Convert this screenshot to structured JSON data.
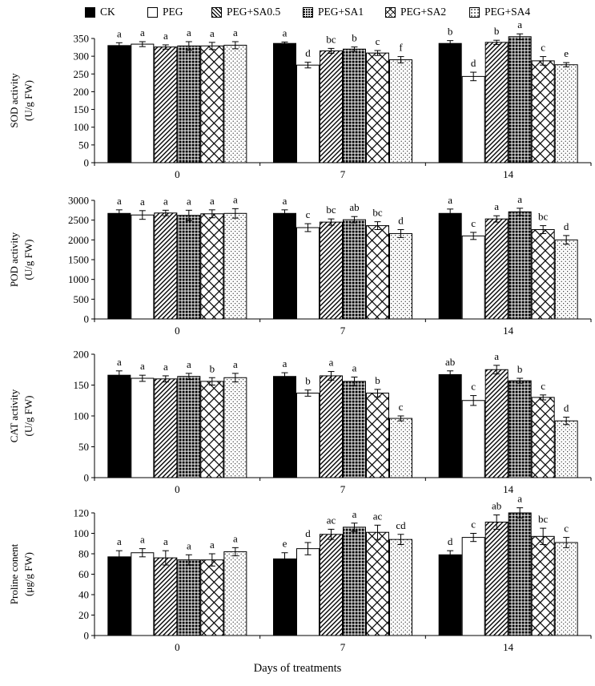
{
  "legend": [
    "CK",
    "PEG",
    "PEG+SA0.5",
    "PEG+SA1",
    "PEG+SA2",
    "PEG+SA4"
  ],
  "x_axis_title": "Days of treatments",
  "chart_data": [
    {
      "type": "bar",
      "ylabel": "SOD activity (U/g FW)",
      "ylim": [
        0,
        350
      ],
      "yticks": [
        0,
        50,
        100,
        150,
        200,
        250,
        300,
        350
      ],
      "categories": [
        "0",
        "7",
        "14"
      ],
      "series": [
        {
          "name": "CK",
          "values": [
            330,
            336,
            336
          ],
          "errors": [
            8,
            4,
            8
          ],
          "letters": [
            "a",
            "a",
            "b"
          ]
        },
        {
          "name": "PEG",
          "values": [
            334,
            275,
            243
          ],
          "errors": [
            7,
            8,
            12
          ],
          "letters": [
            "a",
            "d",
            "d"
          ]
        },
        {
          "name": "PEG+SA0.5",
          "values": [
            326,
            315,
            339
          ],
          "errors": [
            6,
            7,
            6
          ],
          "letters": [
            "a",
            "bc",
            "b"
          ]
        },
        {
          "name": "PEG+SA1",
          "values": [
            329,
            320,
            355
          ],
          "errors": [
            12,
            6,
            8
          ],
          "letters": [
            "a",
            "b",
            "a"
          ]
        },
        {
          "name": "PEG+SA2",
          "values": [
            329,
            309,
            287
          ],
          "errors": [
            10,
            7,
            12
          ],
          "letters": [
            "a",
            "c",
            "c"
          ]
        },
        {
          "name": "PEG+SA4",
          "values": [
            331,
            290,
            276
          ],
          "errors": [
            10,
            9,
            6
          ],
          "letters": [
            "a",
            "f",
            "e"
          ]
        }
      ]
    },
    {
      "type": "bar",
      "ylabel": "POD activity (U/g FW)",
      "ylim": [
        0,
        3000
      ],
      "yticks": [
        0,
        500,
        1000,
        1500,
        2000,
        2500,
        3000
      ],
      "categories": [
        "0",
        "7",
        "14"
      ],
      "series": [
        {
          "name": "CK",
          "values": [
            2670,
            2670,
            2670
          ],
          "errors": [
            90,
            90,
            110
          ],
          "letters": [
            "a",
            "a",
            "a"
          ]
        },
        {
          "name": "PEG",
          "values": [
            2630,
            2310,
            2100
          ],
          "errors": [
            110,
            100,
            90
          ],
          "letters": [
            "a",
            "c",
            "c"
          ]
        },
        {
          "name": "PEG+SA0.5",
          "values": [
            2680,
            2450,
            2530
          ],
          "errors": [
            70,
            80,
            80
          ],
          "letters": [
            "a",
            "bc",
            "a"
          ]
        },
        {
          "name": "PEG+SA1",
          "values": [
            2620,
            2510,
            2710
          ],
          "errors": [
            130,
            80,
            90
          ],
          "letters": [
            "a",
            "ab",
            "a"
          ]
        },
        {
          "name": "PEG+SA2",
          "values": [
            2660,
            2360,
            2260
          ],
          "errors": [
            100,
            100,
            100
          ],
          "letters": [
            "a",
            "bc",
            "bc"
          ]
        },
        {
          "name": "PEG+SA4",
          "values": [
            2670,
            2160,
            2000
          ],
          "errors": [
            120,
            100,
            110
          ],
          "letters": [
            "a",
            "d",
            "d"
          ]
        }
      ]
    },
    {
      "type": "bar",
      "ylabel": "CAT activity (U/g FW)",
      "ylim": [
        0,
        200
      ],
      "yticks": [
        0,
        50,
        100,
        150,
        200
      ],
      "categories": [
        "0",
        "7",
        "14"
      ],
      "series": [
        {
          "name": "CK",
          "values": [
            166,
            164,
            167
          ],
          "errors": [
            7,
            6,
            6
          ],
          "letters": [
            "a",
            "a",
            "ab"
          ]
        },
        {
          "name": "PEG",
          "values": [
            161,
            137,
            125
          ],
          "errors": [
            5,
            5,
            8
          ],
          "letters": [
            "a",
            "b",
            "c"
          ]
        },
        {
          "name": "PEG+SA0.5",
          "values": [
            160,
            165,
            175
          ],
          "errors": [
            5,
            7,
            7
          ],
          "letters": [
            "a",
            "a",
            "a"
          ]
        },
        {
          "name": "PEG+SA1",
          "values": [
            164,
            156,
            157
          ],
          "errors": [
            5,
            7,
            4
          ],
          "letters": [
            "a",
            "a",
            "b"
          ]
        },
        {
          "name": "PEG+SA2",
          "values": [
            156,
            137,
            130
          ],
          "errors": [
            6,
            6,
            4
          ],
          "letters": [
            "b",
            "b",
            "c"
          ]
        },
        {
          "name": "PEG+SA4",
          "values": [
            162,
            96,
            92
          ],
          "errors": [
            7,
            4,
            6
          ],
          "letters": [
            "a",
            "c",
            "d"
          ]
        }
      ]
    },
    {
      "type": "bar",
      "ylabel": "Proline conent (μg/g FW)",
      "ylim": [
        0,
        120
      ],
      "yticks": [
        0,
        20,
        40,
        60,
        80,
        100,
        120
      ],
      "categories": [
        "0",
        "7",
        "14"
      ],
      "series": [
        {
          "name": "CK",
          "values": [
            77,
            75,
            79
          ],
          "errors": [
            6,
            6,
            4
          ],
          "letters": [
            "a",
            "e",
            "d"
          ]
        },
        {
          "name": "PEG",
          "values": [
            81,
            85,
            96
          ],
          "errors": [
            4,
            6,
            4
          ],
          "letters": [
            "a",
            "d",
            "c"
          ]
        },
        {
          "name": "PEG+SA0.5",
          "values": [
            76,
            99,
            111
          ],
          "errors": [
            7,
            5,
            7
          ],
          "letters": [
            "a",
            "ac",
            "ab"
          ]
        },
        {
          "name": "PEG+SA1",
          "values": [
            74,
            106,
            120
          ],
          "errors": [
            5,
            4,
            5
          ],
          "letters": [
            "a",
            "a",
            "a"
          ]
        },
        {
          "name": "PEG+SA2",
          "values": [
            74,
            101,
            97
          ],
          "errors": [
            6,
            7,
            8
          ],
          "letters": [
            "a",
            "ac",
            "bc"
          ]
        },
        {
          "name": "PEG+SA4",
          "values": [
            82,
            94,
            91
          ],
          "errors": [
            4,
            5,
            5
          ],
          "letters": [
            "a",
            "cd",
            "c"
          ]
        }
      ]
    }
  ]
}
